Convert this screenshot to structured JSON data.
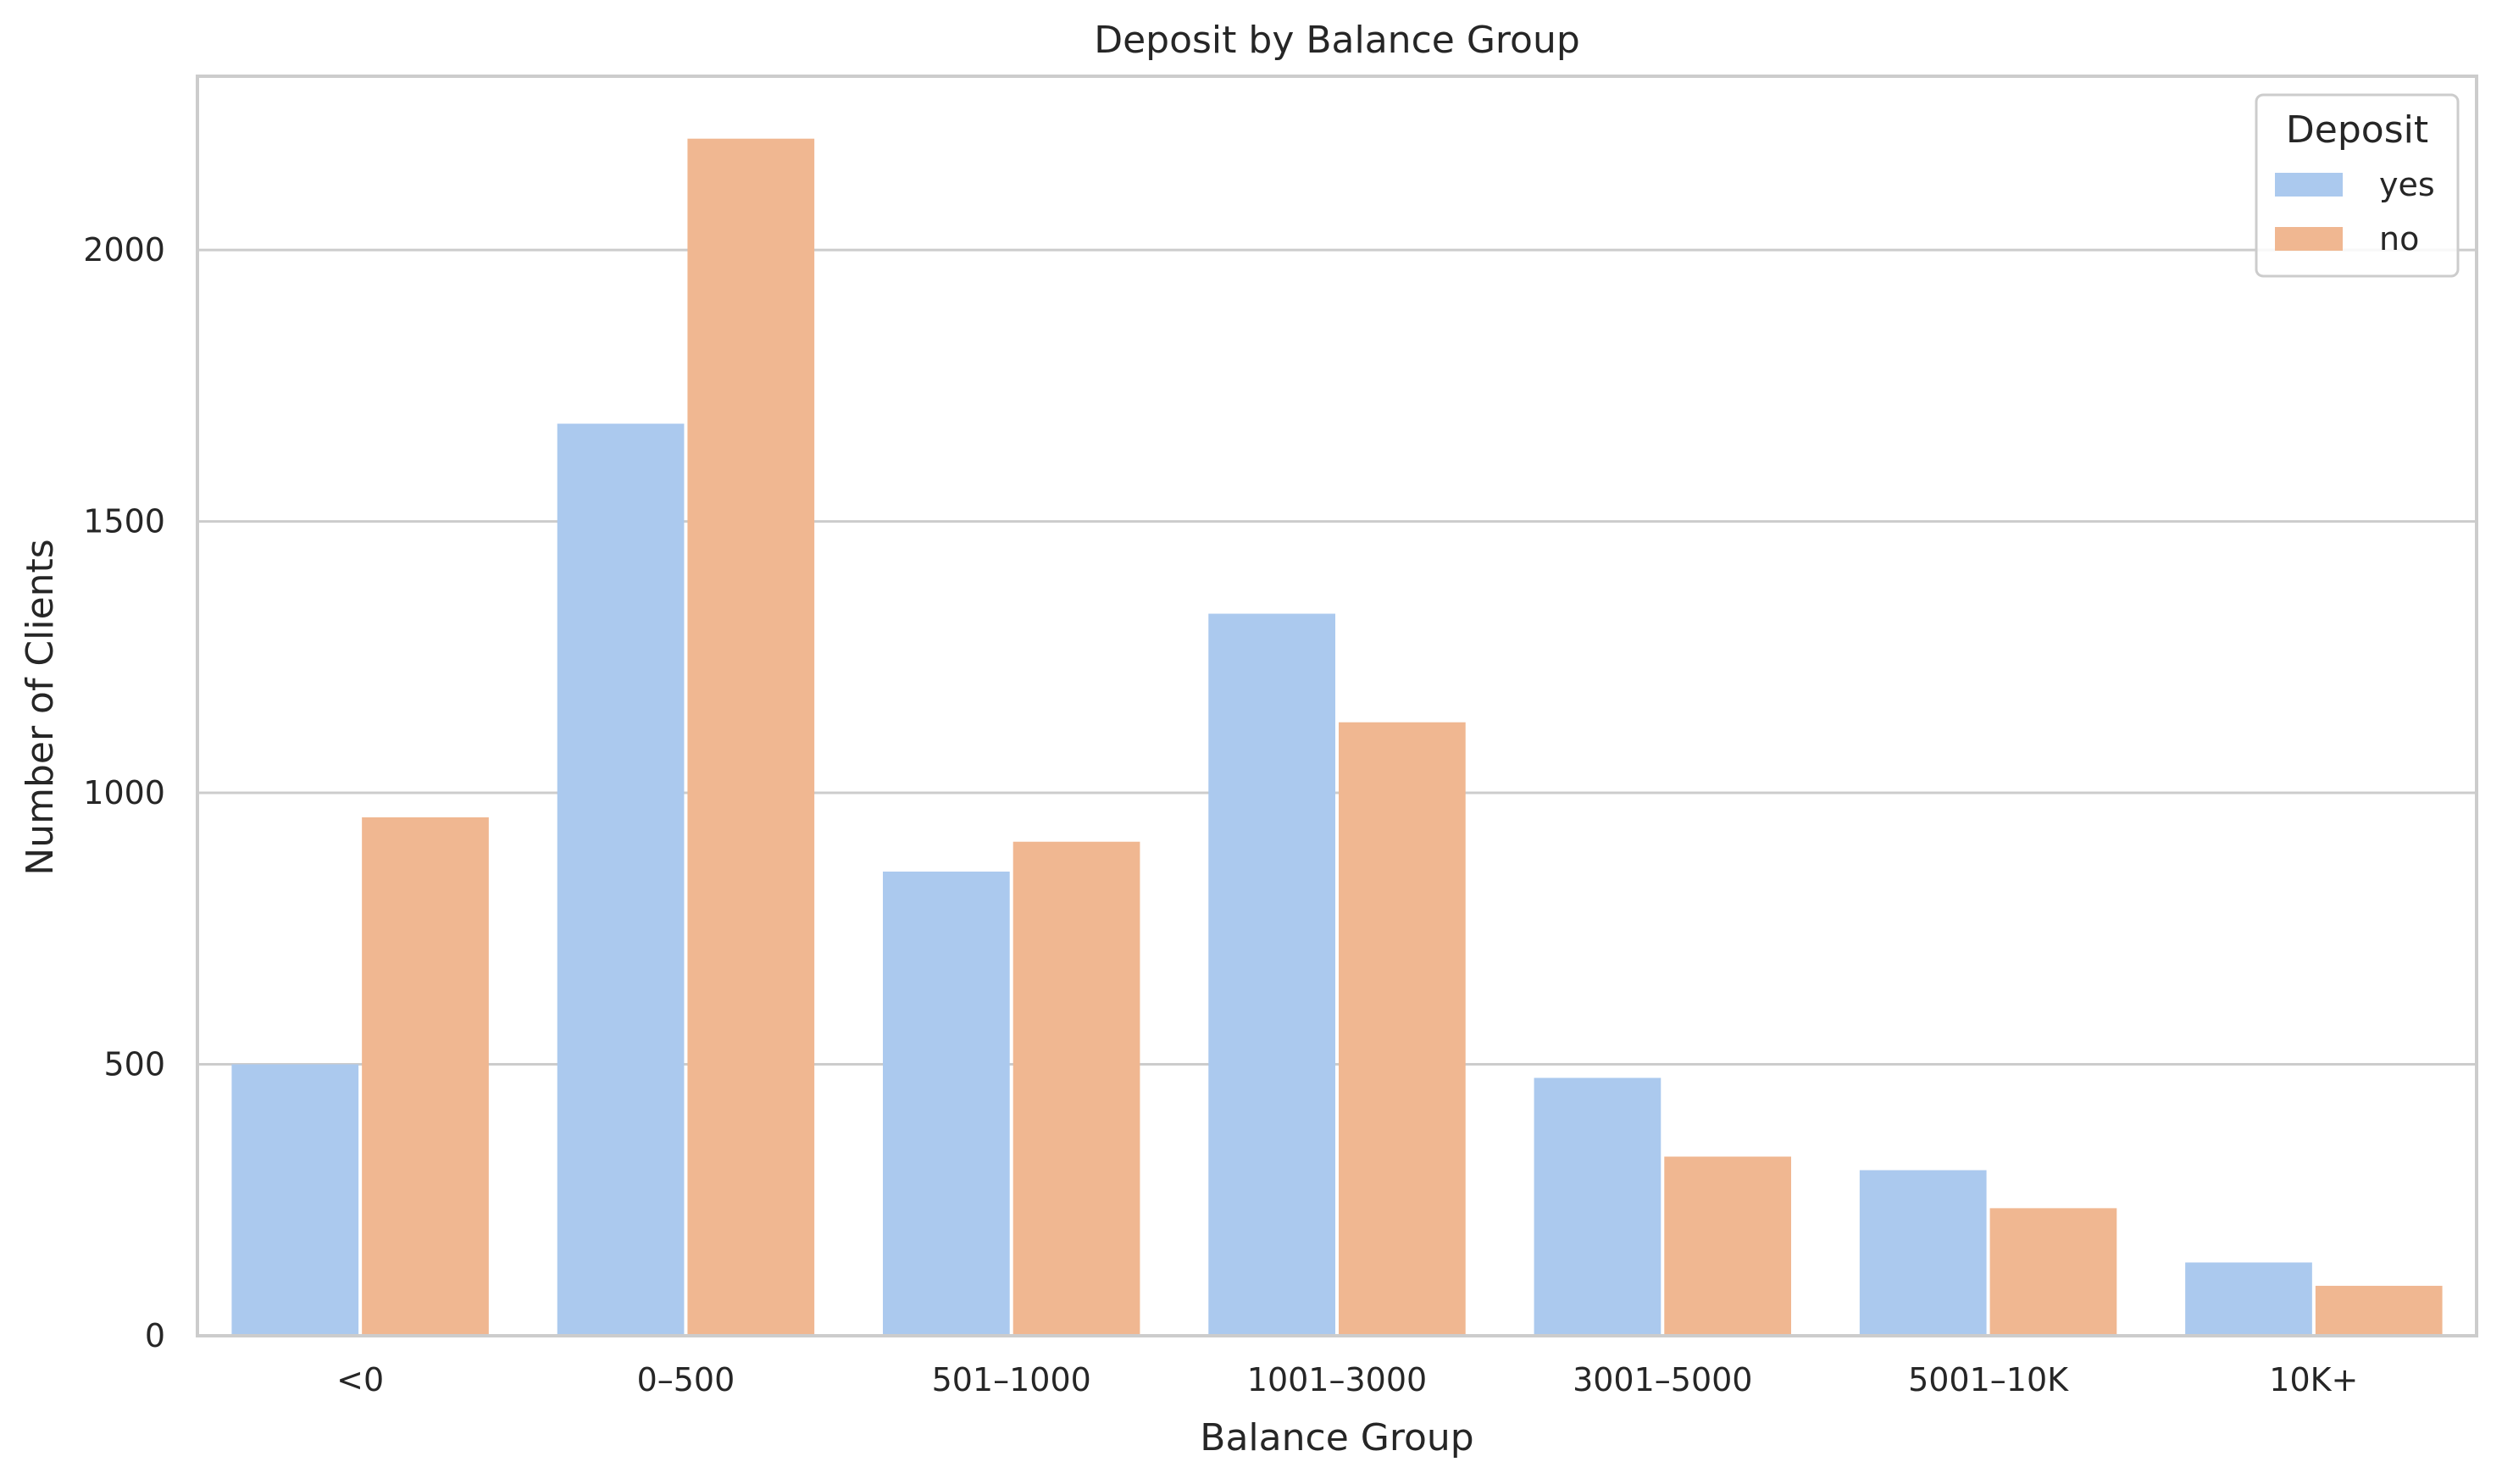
{
  "chart_data": {
    "type": "bar",
    "title": "Deposit by Balance Group",
    "xlabel": "Balance Group",
    "ylabel": "Number of Clients",
    "categories": [
      "<0",
      "0–500",
      "501–1000",
      "1001–3000",
      "3001–5000",
      "5001–10K",
      "10K+"
    ],
    "series": [
      {
        "name": "yes",
        "color": "#abc9ee",
        "values": [
          500,
          1680,
          855,
          1330,
          475,
          305,
          135
        ]
      },
      {
        "name": "no",
        "color": "#f0b791",
        "values": [
          955,
          2205,
          910,
          1130,
          330,
          235,
          92
        ]
      }
    ],
    "ylim": [
      0,
      2320
    ],
    "yticks": [
      0,
      500,
      1000,
      1500,
      2000
    ],
    "grid": true,
    "legend": {
      "title": "Deposit",
      "position": "top-right"
    }
  }
}
